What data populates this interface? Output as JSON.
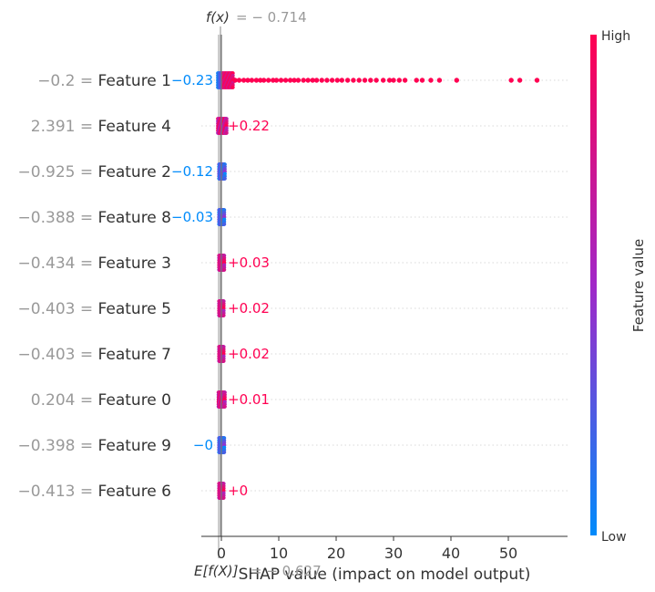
{
  "chart_data": {
    "type": "scatter",
    "subtype": "shap-beeswarm-decision",
    "header": {
      "fx_label": "f(x)",
      "fx_value": "= − 0.714"
    },
    "footer": {
      "base_label": "E[f(X)]",
      "base_value": "= − 0.627"
    },
    "xlabel": "SHAP value (impact on model output)",
    "xlim": [
      -3.2,
      58
    ],
    "xticks": [
      0,
      10,
      20,
      30,
      40,
      50
    ],
    "base_value": -0.627,
    "output_value": -0.714,
    "features": [
      {
        "name": "Feature 1",
        "value": "−0.2",
        "contribution": "−0.23",
        "shap": -0.23,
        "sign": "neg",
        "spread": {
          "dense_to": 2,
          "sparse": [
            2.4,
            3.1,
            3.9,
            4.6,
            5.3,
            6.1,
            6.8,
            7.4,
            8.2,
            9.0,
            9.6,
            10.4,
            11.2,
            12.0,
            12.7,
            13.4,
            14.3,
            15.1,
            15.9,
            16.6,
            17.5,
            18.4,
            19.3,
            20.2,
            21.0,
            22.0,
            23.0,
            24.0,
            25.0,
            26.0,
            27.0,
            28.2,
            29.3,
            30.0,
            31.0,
            32.0,
            34.0,
            35.0,
            36.5,
            38.0,
            41.0,
            50.5,
            52.0,
            55.0
          ]
        }
      },
      {
        "name": "Feature 4",
        "value": "2.391",
        "contribution": "+0.22",
        "shap": 0.22,
        "sign": "pos",
        "spread": {
          "min": -0.6,
          "max": 0.9
        }
      },
      {
        "name": "Feature 2",
        "value": "−0.925",
        "contribution": "−0.12",
        "shap": -0.12,
        "sign": "neg",
        "spread": {
          "min": -0.4,
          "max": 0.6
        }
      },
      {
        "name": "Feature 8",
        "value": "−0.388",
        "contribution": "−0.03",
        "shap": -0.03,
        "sign": "neg",
        "spread": {
          "min": -0.4,
          "max": 0.5
        }
      },
      {
        "name": "Feature 3",
        "value": "−0.434",
        "contribution": "+0.03",
        "shap": 0.03,
        "sign": "pos",
        "spread": {
          "min": -0.4,
          "max": 0.5
        }
      },
      {
        "name": "Feature 5",
        "value": "−0.403",
        "contribution": "+0.02",
        "shap": 0.02,
        "sign": "pos",
        "spread": {
          "min": -0.4,
          "max": 0.4
        }
      },
      {
        "name": "Feature 7",
        "value": "−0.403",
        "contribution": "+0.02",
        "shap": 0.02,
        "sign": "pos",
        "spread": {
          "min": -0.4,
          "max": 0.4
        }
      },
      {
        "name": "Feature 0",
        "value": "0.204",
        "contribution": "+0.01",
        "shap": 0.01,
        "sign": "pos",
        "spread": {
          "min": -0.5,
          "max": 0.6
        }
      },
      {
        "name": "Feature 9",
        "value": "−0.398",
        "contribution": "−0",
        "shap": 0.0,
        "sign": "neg",
        "spread": {
          "min": -0.4,
          "max": 0.5
        }
      },
      {
        "name": "Feature 6",
        "value": "−0.413",
        "contribution": "+0",
        "shap": 0.0,
        "sign": "pos",
        "spread": {
          "min": -0.4,
          "max": 0.4
        }
      }
    ],
    "colorbar": {
      "label": "Feature value",
      "high": "High",
      "low": "Low"
    },
    "colors": {
      "positive": "#ff0052",
      "negative": "#008bfb",
      "mid": "#a128c8",
      "text": "#333333",
      "muted": "#999999",
      "grid": "#cccccc"
    },
    "grid": true
  }
}
